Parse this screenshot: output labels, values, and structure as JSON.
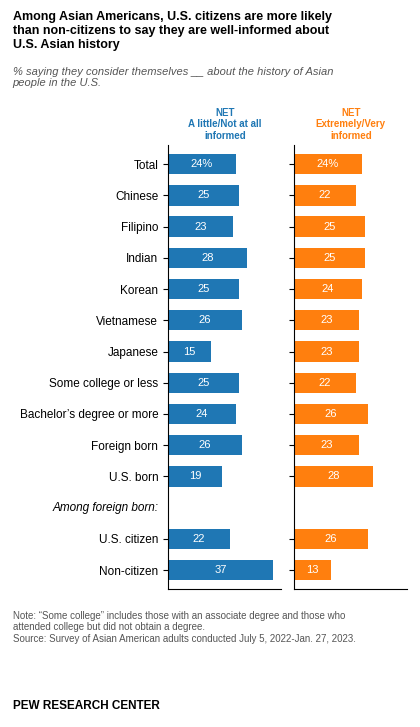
{
  "chart_data": {
    "type": "bar",
    "orientation": "horizontal",
    "title": "Among Asian Americans, U.S. citizens are more likely\nthan non-citizens to say they are well-informed about\nU.S. Asian history",
    "subtitle": "% saying they consider themselves __ about the history of Asian\npeople in the U.S.",
    "categories": [
      "Total",
      "Chinese",
      "Filipino",
      "Indian",
      "Korean",
      "Vietnamese",
      "Japanese",
      "Some college or less",
      "Bachelor’s degree or more",
      "Foreign born",
      "U.S. born",
      "U.S. citizen",
      "Non-citizen"
    ],
    "row_heading": {
      "text": "Among foreign born:",
      "before": "U.S. citizen"
    },
    "series": [
      {
        "name": "NET\nA little/Not at all\ninformed",
        "values": [
          24,
          25,
          23,
          28,
          25,
          26,
          15,
          25,
          24,
          26,
          19,
          22,
          37
        ],
        "value_labels": [
          "24%",
          "25",
          "23",
          "28",
          "25",
          "26",
          "15",
          "25",
          "24",
          "26",
          "19",
          "22",
          "37"
        ]
      },
      {
        "name": "NET\nExtremely/Very\ninformed",
        "values": [
          24,
          22,
          25,
          25,
          24,
          23,
          23,
          22,
          26,
          23,
          28,
          26,
          13
        ],
        "value_labels": [
          "24%",
          "22",
          "25",
          "25",
          "24",
          "23",
          "23",
          "22",
          "26",
          "23",
          "28",
          "26",
          "13"
        ]
      }
    ],
    "xlim": [
      0,
      40
    ],
    "xticks": [],
    "data_labels": true,
    "tick_labels": "y",
    "notes": [
      "Note: “Some college” includes those with an associate degree and those who",
      "attended college but did not obtain a degree.",
      "Source: Survey of Asian American adults conducted July 5, 2022-Jan. 27, 2023."
    ],
    "footer": "PEW RESEARCH CENTER"
  }
}
